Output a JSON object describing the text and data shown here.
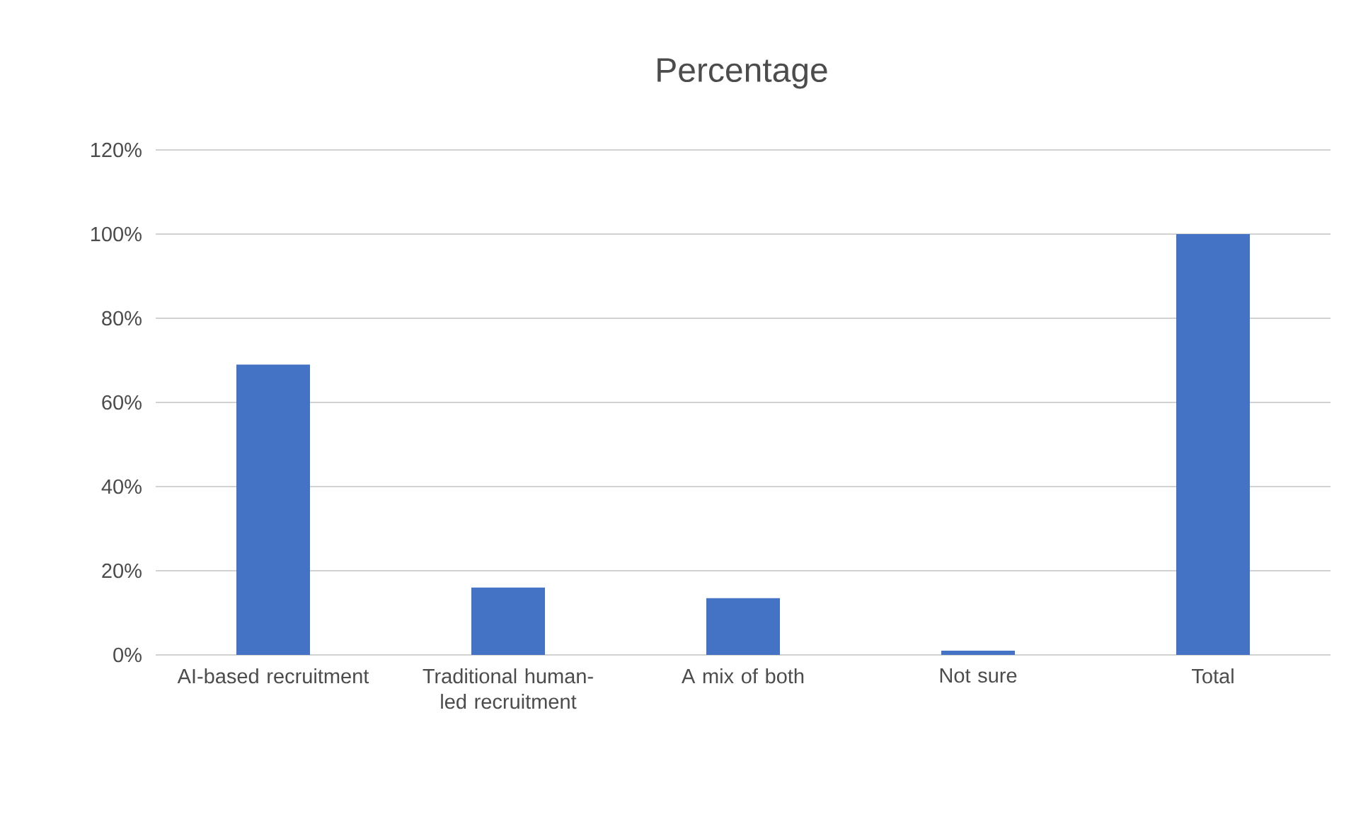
{
  "chart_data": {
    "type": "bar",
    "title": "Percentage",
    "categories": [
      "AI-based recruitment",
      "Traditional human-led recruitment",
      "A mix of both",
      "Not sure",
      "Total"
    ],
    "values": [
      69,
      16,
      13.5,
      1,
      100
    ],
    "color": "#4472c4",
    "ylim": [
      0,
      120
    ],
    "yticks": [
      {
        "value": 0,
        "label": "0%"
      },
      {
        "value": 20,
        "label": "20%"
      },
      {
        "value": 40,
        "label": "40%"
      },
      {
        "value": 60,
        "label": "60%"
      },
      {
        "value": 80,
        "label": "80%"
      },
      {
        "value": 100,
        "label": "100%"
      },
      {
        "value": 120,
        "label": "120%"
      }
    ],
    "grid": "y"
  }
}
